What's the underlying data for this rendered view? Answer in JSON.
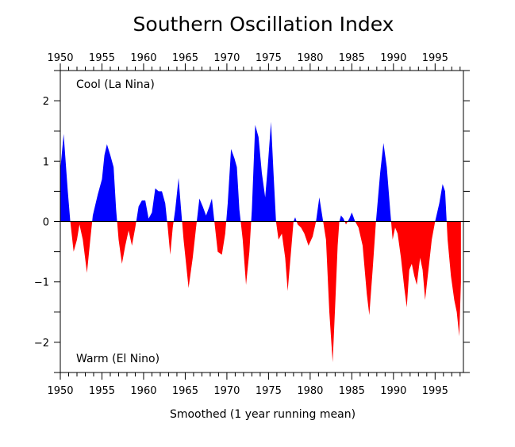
{
  "chart_data": {
    "type": "area",
    "title": "Southern Oscillation Index",
    "xlabel": "Smoothed (1 year running mean)",
    "ylabel": "",
    "xlim": [
      1950,
      1998.4
    ],
    "ylim": [
      -2.5,
      2.5
    ],
    "x_ticks": [
      1950,
      1955,
      1960,
      1965,
      1970,
      1975,
      1980,
      1985,
      1990,
      1995
    ],
    "x_tick_labels": [
      "1950",
      "1955",
      "1960",
      "1965",
      "1970",
      "1975",
      "1980",
      "1985",
      "1990",
      "1995"
    ],
    "y_ticks": [
      -2,
      -1,
      0,
      1,
      2
    ],
    "y_tick_labels": [
      "−2",
      "−1",
      "0",
      "1",
      "2"
    ],
    "annotations": {
      "top": "Cool (La Nina)",
      "bottom": "Warm (El Nino)"
    },
    "colors": {
      "positive": "#0000ff",
      "negative": "#ff0000"
    },
    "grid": false,
    "series": [
      {
        "x": [
          1950.0,
          1950.4,
          1950.9,
          1951.2,
          1951.6,
          1952.0,
          1952.3,
          1952.7,
          1953.2,
          1953.6,
          1953.9,
          1954.5,
          1955.0,
          1955.3,
          1955.6,
          1956.0,
          1956.4,
          1956.7,
          1957.0,
          1957.4,
          1957.8,
          1958.2,
          1958.6,
          1959.0,
          1959.4,
          1959.8,
          1960.2,
          1960.6,
          1961.0,
          1961.4,
          1961.8,
          1962.2,
          1962.6,
          1962.9,
          1963.2,
          1963.5,
          1963.8,
          1964.2,
          1964.5,
          1964.8,
          1965.4,
          1965.9,
          1966.3,
          1966.7,
          1967.1,
          1967.5,
          1967.9,
          1968.2,
          1968.5,
          1968.9,
          1969.4,
          1969.8,
          1970.1,
          1970.5,
          1970.9,
          1971.2,
          1971.5,
          1971.9,
          1972.3,
          1972.7,
          1973.0,
          1973.4,
          1973.8,
          1974.2,
          1974.6,
          1974.9,
          1975.3,
          1975.6,
          1975.9,
          1976.2,
          1976.6,
          1977.0,
          1977.3,
          1977.7,
          1978.0,
          1978.2,
          1978.5,
          1978.9,
          1979.3,
          1979.8,
          1980.3,
          1980.7,
          1981.1,
          1981.5,
          1981.9,
          1982.3,
          1982.7,
          1983.0,
          1983.3,
          1983.5,
          1983.7,
          1984.0,
          1984.3,
          1984.7,
          1985.0,
          1985.4,
          1985.8,
          1986.3,
          1986.8,
          1987.1,
          1987.5,
          1987.9,
          1988.4,
          1988.8,
          1989.2,
          1989.6,
          1989.9,
          1990.2,
          1990.5,
          1990.9,
          1991.3,
          1991.6,
          1991.9,
          1992.2,
          1992.5,
          1992.8,
          1993.2,
          1993.5,
          1993.8,
          1994.2,
          1994.6,
          1995.0,
          1995.5,
          1995.9,
          1996.2,
          1996.5,
          1996.9,
          1997.3,
          1997.6,
          1997.9,
          1998.1
        ],
        "y": [
          0.85,
          1.45,
          0.5,
          0.0,
          -0.5,
          -0.3,
          -0.05,
          -0.3,
          -0.85,
          -0.3,
          0.1,
          0.45,
          0.7,
          1.1,
          1.28,
          1.1,
          0.9,
          0.2,
          -0.3,
          -0.7,
          -0.4,
          -0.15,
          -0.4,
          -0.1,
          0.25,
          0.35,
          0.35,
          0.05,
          0.15,
          0.55,
          0.5,
          0.5,
          0.3,
          -0.1,
          -0.55,
          -0.1,
          0.2,
          0.72,
          0.2,
          -0.3,
          -1.1,
          -0.6,
          -0.1,
          0.38,
          0.25,
          0.1,
          0.25,
          0.38,
          0.0,
          -0.5,
          -0.55,
          -0.2,
          0.3,
          1.2,
          1.05,
          0.9,
          0.2,
          -0.3,
          -1.05,
          -0.5,
          0.2,
          1.6,
          1.4,
          0.8,
          0.4,
          0.9,
          1.65,
          0.8,
          0.0,
          -0.3,
          -0.2,
          -0.6,
          -1.15,
          -0.5,
          0.0,
          0.07,
          -0.05,
          -0.1,
          -0.2,
          -0.4,
          -0.25,
          0.0,
          0.4,
          0.05,
          -0.3,
          -1.5,
          -2.33,
          -1.4,
          -0.4,
          0.0,
          0.1,
          0.05,
          -0.05,
          0.05,
          0.15,
          0.0,
          -0.1,
          -0.4,
          -1.2,
          -1.55,
          -0.8,
          0.0,
          0.8,
          1.3,
          0.9,
          0.2,
          -0.3,
          -0.1,
          -0.2,
          -0.6,
          -1.1,
          -1.42,
          -0.8,
          -0.7,
          -0.9,
          -1.05,
          -0.6,
          -0.8,
          -1.3,
          -0.8,
          -0.3,
          0.0,
          0.3,
          0.62,
          0.5,
          -0.3,
          -0.9,
          -1.3,
          -1.5,
          -1.9,
          -1.0
        ]
      }
    ]
  }
}
